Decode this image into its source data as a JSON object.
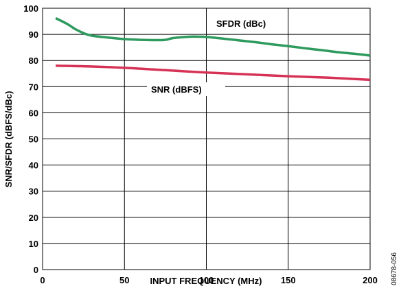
{
  "chart_data": {
    "type": "line",
    "xlabel": "INPUT FREQUENCY (MHz)",
    "ylabel": "SNR/SFDR (dBFS/dBc)",
    "xlim": [
      0,
      200
    ],
    "ylim": [
      0,
      100
    ],
    "x_ticks": [
      "0",
      "50",
      "100",
      "150",
      "200"
    ],
    "y_ticks": [
      "0",
      "10",
      "20",
      "30",
      "40",
      "50",
      "60",
      "70",
      "80",
      "90",
      "100"
    ],
    "grid": true,
    "series": [
      {
        "name": "SFDR (dBc)",
        "color": "#2e9a5e",
        "x": [
          8,
          15,
          20,
          25,
          30,
          40,
          50,
          60,
          70,
          75,
          80,
          90,
          95,
          100,
          110,
          120,
          130,
          140,
          150,
          160,
          170,
          180,
          190,
          200
        ],
        "y": [
          96.2,
          94.0,
          92.0,
          90.5,
          89.5,
          88.8,
          88.2,
          87.9,
          87.8,
          87.9,
          88.6,
          89.1,
          89.1,
          89.0,
          88.4,
          87.7,
          87.0,
          86.2,
          85.5,
          84.7,
          84.0,
          83.2,
          82.6,
          81.9
        ]
      },
      {
        "name": "SNR (dBFS)",
        "color": "#d63255",
        "x": [
          8,
          25,
          50,
          75,
          100,
          125,
          150,
          175,
          200
        ],
        "y": [
          78.0,
          77.8,
          77.2,
          76.3,
          75.4,
          74.7,
          74.0,
          73.4,
          72.6
        ]
      }
    ]
  },
  "figure_id": "08678-056"
}
